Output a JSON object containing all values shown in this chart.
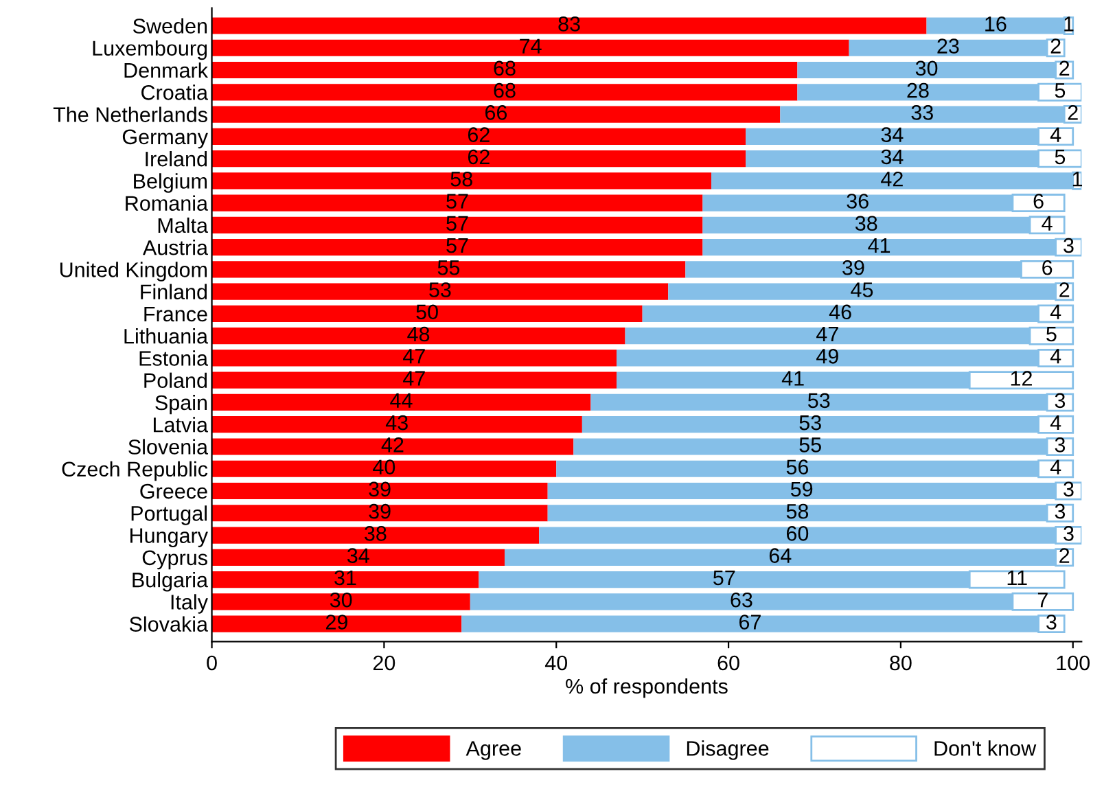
{
  "chart_data": {
    "type": "bar",
    "orientation": "horizontal",
    "stacked": true,
    "data_labels": true,
    "legend": "bottom",
    "grid": false,
    "xlabel": "% of respondents",
    "xlim": [
      0,
      101
    ],
    "xticks": [
      0,
      20,
      40,
      60,
      80,
      100
    ],
    "categories": [
      "Sweden",
      "Luxembourg",
      "Denmark",
      "Croatia",
      "The Netherlands",
      "Germany",
      "Ireland",
      "Belgium",
      "Romania",
      "Malta",
      "Austria",
      "United Kingdom",
      "Finland",
      "France",
      "Lithuania",
      "Estonia",
      "Poland",
      "Spain",
      "Latvia",
      "Slovenia",
      "Czech Republic",
      "Greece",
      "Portugal",
      "Hungary",
      "Cyprus",
      "Bulgaria",
      "Italy",
      "Slovakia"
    ],
    "series": [
      {
        "name": "Agree",
        "color": "#ff0000",
        "values": [
          83,
          74,
          68,
          68,
          66,
          62,
          62,
          58,
          57,
          57,
          57,
          55,
          53,
          50,
          48,
          47,
          47,
          44,
          43,
          42,
          40,
          39,
          39,
          38,
          34,
          31,
          30,
          29
        ]
      },
      {
        "name": "Disagree",
        "color": "#85bfe8",
        "values": [
          16,
          23,
          30,
          28,
          33,
          34,
          34,
          42,
          36,
          38,
          41,
          39,
          45,
          46,
          47,
          49,
          41,
          53,
          53,
          55,
          56,
          59,
          58,
          60,
          64,
          57,
          63,
          67
        ]
      },
      {
        "name": "Don't know",
        "color": "#ffffff",
        "values": [
          1,
          2,
          2,
          5,
          2,
          4,
          5,
          1,
          6,
          4,
          3,
          6,
          2,
          4,
          5,
          4,
          12,
          3,
          4,
          3,
          4,
          3,
          3,
          3,
          2,
          11,
          7,
          3
        ]
      }
    ]
  }
}
